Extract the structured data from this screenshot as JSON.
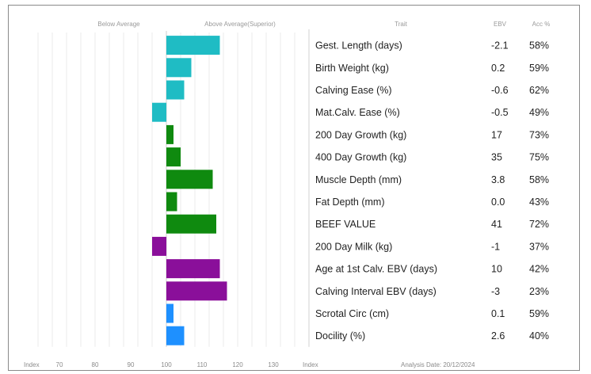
{
  "chart_data": {
    "type": "bar",
    "orientation": "horizontal",
    "header": {
      "below": "Below Average",
      "above": "Above Average(Superior)",
      "trait": "Trait",
      "ebv": "EBV",
      "acc": "Acc %"
    },
    "footer": {
      "index_left": "Index",
      "index_right": "Index",
      "analysis_date": "Analysis Date: 20/12/2024"
    },
    "xlim": [
      60,
      140
    ],
    "ticks": [
      "70",
      "80",
      "90",
      "100",
      "110",
      "120",
      "130"
    ],
    "tick_values": [
      70,
      80,
      90,
      100,
      110,
      120,
      130
    ],
    "grid": true,
    "baseline": 100,
    "colors": {
      "teal": "#1fbcc4",
      "green": "#0f8a0f",
      "purple": "#8a0f9a",
      "blue": "#1e90ff",
      "grid": "#ebebeb",
      "axis": "#cfcfcf"
    },
    "rows": [
      {
        "trait": "Gest. Length (days)",
        "ebv": "-2.1",
        "acc": "58%",
        "index": 115,
        "color": "teal"
      },
      {
        "trait": "Birth Weight (kg)",
        "ebv": "0.2",
        "acc": "59%",
        "index": 107,
        "color": "teal"
      },
      {
        "trait": "Calving Ease (%)",
        "ebv": "-0.6",
        "acc": "62%",
        "index": 105,
        "color": "teal"
      },
      {
        "trait": "Mat.Calv. Ease (%)",
        "ebv": "-0.5",
        "acc": "49%",
        "index": 96,
        "color": "teal"
      },
      {
        "trait": "200 Day Growth (kg)",
        "ebv": "17",
        "acc": "73%",
        "index": 102,
        "color": "green"
      },
      {
        "trait": "400 Day Growth (kg)",
        "ebv": "35",
        "acc": "75%",
        "index": 104,
        "color": "green"
      },
      {
        "trait": "Muscle Depth (mm)",
        "ebv": "3.8",
        "acc": "58%",
        "index": 113,
        "color": "green"
      },
      {
        "trait": "Fat Depth (mm)",
        "ebv": "0.0",
        "acc": "43%",
        "index": 103,
        "color": "green"
      },
      {
        "trait": "BEEF VALUE",
        "ebv": "41",
        "acc": "72%",
        "index": 114,
        "color": "green"
      },
      {
        "trait": "200 Day Milk (kg)",
        "ebv": "-1",
        "acc": "37%",
        "index": 96,
        "color": "purple"
      },
      {
        "trait": "Age at 1st Calv. EBV (days)",
        "ebv": "10",
        "acc": "42%",
        "index": 115,
        "color": "purple"
      },
      {
        "trait": "Calving Interval EBV (days)",
        "ebv": "-3",
        "acc": "23%",
        "index": 117,
        "color": "purple"
      },
      {
        "trait": "Scrotal Circ (cm)",
        "ebv": "0.1",
        "acc": "59%",
        "index": 102,
        "color": "blue"
      },
      {
        "trait": "Docility (%)",
        "ebv": "2.6",
        "acc": "40%",
        "index": 105,
        "color": "blue"
      }
    ]
  }
}
